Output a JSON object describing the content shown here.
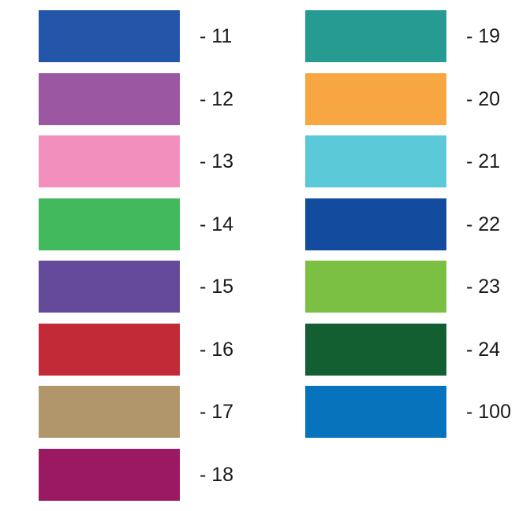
{
  "legend": {
    "left_column": [
      {
        "label": "- 11",
        "color": "#2356a8"
      },
      {
        "label": "- 12",
        "color": "#9b57a1"
      },
      {
        "label": "- 13",
        "color": "#f38fbc"
      },
      {
        "label": "- 14",
        "color": "#41b95c"
      },
      {
        "label": "- 15",
        "color": "#654a9c"
      },
      {
        "label": "- 16",
        "color": "#c22a37"
      },
      {
        "label": "- 17",
        "color": "#b1966c"
      },
      {
        "label": "- 18",
        "color": "#9b1862"
      }
    ],
    "right_column": [
      {
        "label": "- 19",
        "color": "#259b92"
      },
      {
        "label": "- 20",
        "color": "#f7a641"
      },
      {
        "label": "- 21",
        "color": "#5cc9d8"
      },
      {
        "label": "- 22",
        "color": "#134c9f"
      },
      {
        "label": "- 23",
        "color": "#7bc043"
      },
      {
        "label": "- 24",
        "color": "#135f31"
      },
      {
        "label": "- 100",
        "color": "#0873bd"
      }
    ]
  }
}
